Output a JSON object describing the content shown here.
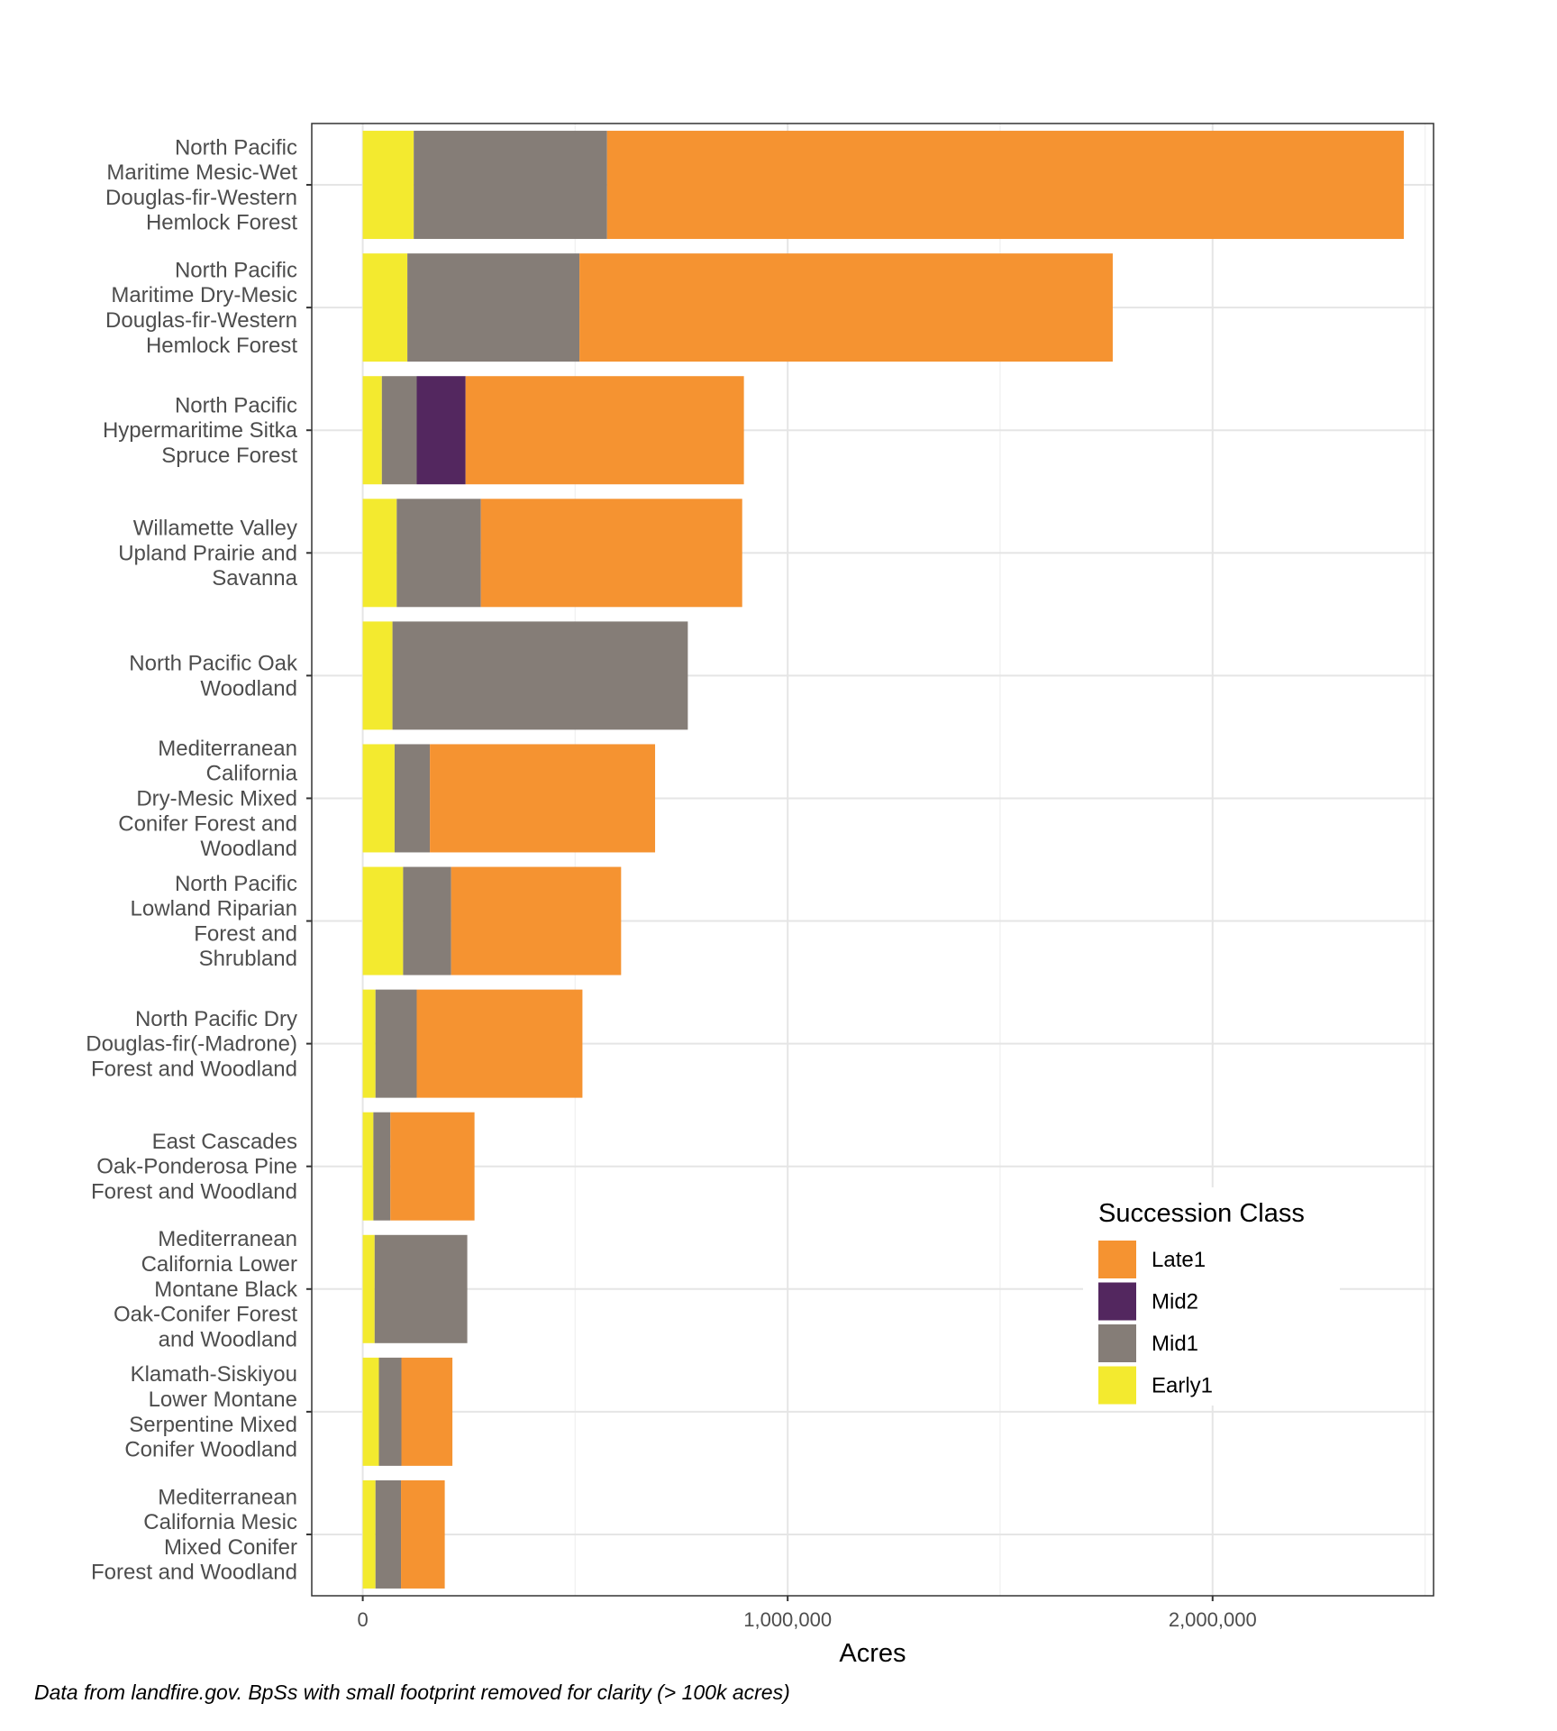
{
  "chart_data": {
    "type": "bar",
    "orientation": "horizontal",
    "stacked": true,
    "xlabel": "Acres",
    "xlim": [
      -120000,
      2520000
    ],
    "xticks": [
      0,
      1000000,
      2000000
    ],
    "xtick_labels": [
      "0",
      "1,000,000",
      "2,000,000"
    ],
    "grid": true,
    "legend_position": "bottom-right inside",
    "caption": "Data from landfire.gov. BpSs with small footprint removed for clarity (> 100k acres)",
    "legend": {
      "title": "Succession Class",
      "entries": [
        "Late1",
        "Mid2",
        "Mid1",
        "Early1"
      ]
    },
    "categories": [
      [
        "North Pacific",
        "Maritime Mesic-Wet",
        "Douglas-fir-Western",
        "Hemlock Forest"
      ],
      [
        "North Pacific",
        "Maritime Dry-Mesic",
        "Douglas-fir-Western",
        "Hemlock Forest"
      ],
      [
        "North Pacific",
        "Hypermaritime Sitka",
        "Spruce Forest"
      ],
      [
        "Willamette Valley",
        "Upland Prairie and",
        "Savanna"
      ],
      [
        "North Pacific Oak",
        "Woodland"
      ],
      [
        "Mediterranean",
        "California",
        "Dry-Mesic Mixed",
        "Conifer Forest and",
        "Woodland"
      ],
      [
        "North Pacific",
        "Lowland Riparian",
        "Forest and",
        "Shrubland"
      ],
      [
        "North Pacific Dry",
        "Douglas-fir(-Madrone)",
        "Forest and Woodland"
      ],
      [
        "East Cascades",
        "Oak-Ponderosa Pine",
        "Forest and Woodland"
      ],
      [
        "Mediterranean",
        "California Lower",
        "Montane Black",
        "Oak-Conifer Forest",
        "and Woodland"
      ],
      [
        "Klamath-Siskiyou",
        "Lower Montane",
        "Serpentine Mixed",
        "Conifer Woodland"
      ],
      [
        "Mediterranean",
        "California Mesic",
        "Mixed Conifer",
        "Forest and Woodland"
      ]
    ],
    "series": [
      {
        "name": "Early1",
        "color": "#f3ea2f",
        "values": [
          120000,
          105000,
          45000,
          80000,
          70000,
          75000,
          95000,
          30000,
          25000,
          28000,
          38000,
          30000
        ]
      },
      {
        "name": "Mid1",
        "color": "#857d77",
        "values": [
          455000,
          405000,
          82000,
          198000,
          695000,
          83000,
          113000,
          97000,
          40000,
          218000,
          53000,
          60000
        ]
      },
      {
        "name": "Mid2",
        "color": "#53275f",
        "values": [
          0,
          0,
          115000,
          0,
          0,
          0,
          0,
          0,
          0,
          0,
          0,
          0
        ]
      },
      {
        "name": "Late1",
        "color": "#f59331",
        "values": [
          1875000,
          1255000,
          655000,
          615000,
          0,
          530000,
          400000,
          390000,
          198000,
          0,
          120000,
          103000
        ]
      }
    ]
  }
}
